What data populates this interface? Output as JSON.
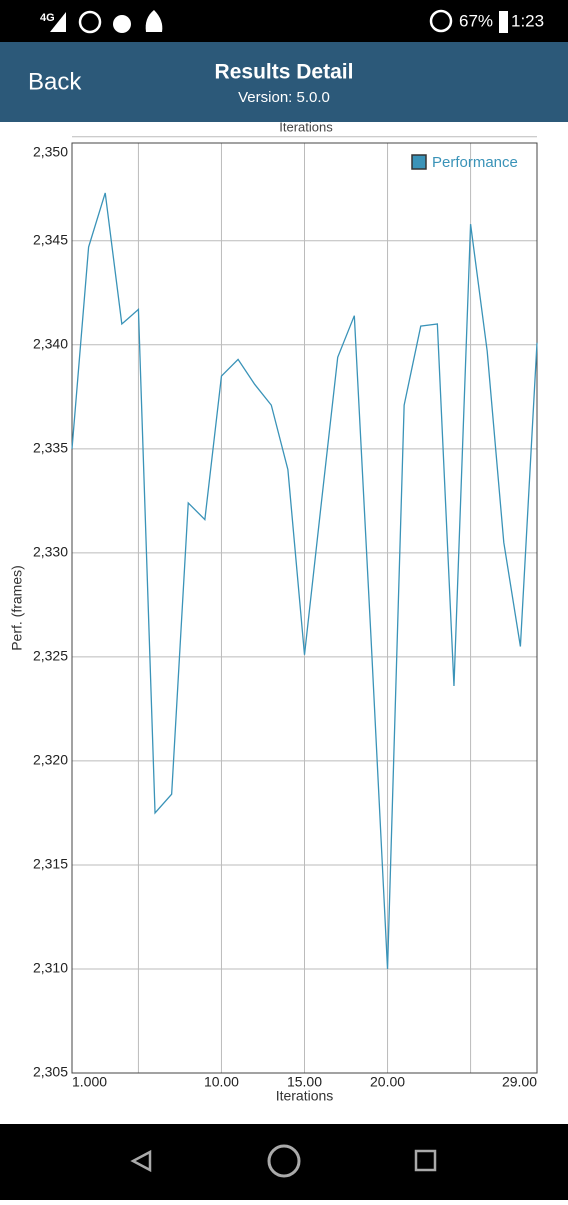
{
  "status_bar": {
    "network": "4G",
    "battery": "67%",
    "time": "1:23"
  },
  "header": {
    "back": "Back",
    "title": "Results Detail",
    "subtitle": "Version: 5.0.0"
  },
  "previous_chart_xlabel": "Iterations",
  "chart_data": {
    "type": "line",
    "x_label": "Iterations",
    "y_label": "Perf. (frames)",
    "x": [
      1,
      2,
      3,
      4,
      5,
      6,
      7,
      8,
      9,
      10,
      11,
      12,
      13,
      14,
      15,
      16,
      17,
      18,
      19,
      20,
      21,
      22,
      23,
      24,
      25,
      26,
      27,
      28,
      29
    ],
    "series": [
      {
        "name": "Performance",
        "color": "#3a93b8",
        "values": [
          2335.0,
          2344.7,
          2347.3,
          2341.0,
          2341.7,
          2317.5,
          2318.4,
          2332.4,
          2331.6,
          2338.5,
          2339.3,
          2338.1,
          2337.1,
          2334.0,
          2325.1,
          2332.3,
          2339.4,
          2341.4,
          2326.0,
          2310.0,
          2337.1,
          2340.9,
          2341.0,
          2323.6,
          2345.8,
          2339.7,
          2330.5,
          2325.5,
          2340.1
        ]
      }
    ],
    "xlim": [
      1,
      29
    ],
    "xticks": [
      {
        "value": 1,
        "label": "1.000"
      },
      {
        "value": 10,
        "label": "10.00"
      },
      {
        "value": 15,
        "label": "15.00"
      },
      {
        "value": 20,
        "label": "20.00"
      },
      {
        "value": 29,
        "label": "29.00"
      }
    ],
    "xgrid": [
      5,
      10,
      15,
      20,
      25
    ],
    "ylim": [
      2305,
      2349.7
    ],
    "yticks": [
      {
        "value": 2305,
        "label": "2,305"
      },
      {
        "value": 2310,
        "label": "2,310"
      },
      {
        "value": 2315,
        "label": "2,315"
      },
      {
        "value": 2320,
        "label": "2,320"
      },
      {
        "value": 2325,
        "label": "2,325"
      },
      {
        "value": 2330,
        "label": "2,330"
      },
      {
        "value": 2335,
        "label": "2,335"
      },
      {
        "value": 2340,
        "label": "2,340"
      },
      {
        "value": 2345,
        "label": "2,345"
      },
      {
        "value": 2350,
        "label": "2,350"
      }
    ],
    "grid": true,
    "legend": "top-right"
  }
}
